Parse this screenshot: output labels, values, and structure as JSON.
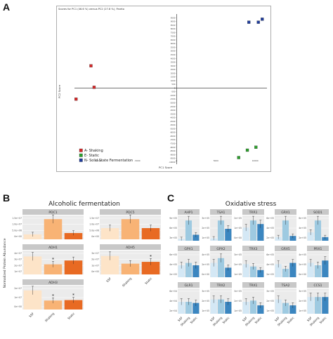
{
  "panels": {
    "a": "A",
    "b": "B",
    "c": "C"
  },
  "pca": {
    "header": "Scores for PC1 (46.6 %) versus PC2 (27.8 %), Pareto",
    "xlabel": "PC1 Score",
    "ylabel": "PC2 Score",
    "y_ticks": [
      "9500",
      "9000",
      "8500",
      "8000",
      "7500",
      "7000",
      "6500",
      "6000",
      "5500",
      "5000",
      "4500",
      "4000",
      "3500",
      "3000",
      "2500",
      "2000",
      "1500",
      "1000",
      "500",
      "0",
      "-500",
      "-1000",
      "-1500",
      "-2000",
      "-2500",
      "-3000",
      "-3500",
      "-4000",
      "-4500",
      "-5000",
      "-5500",
      "-6000",
      "-6500",
      "-7000",
      "-7500",
      "-8000",
      "-8500",
      "-9000",
      "-9500",
      "-10000"
    ],
    "x_ticks": [
      "-10000",
      "-5000",
      "0",
      "5000",
      "10000"
    ],
    "legend": [
      {
        "label": "A- Shaking",
        "color": "#d62728"
      },
      {
        "label": "E- Static",
        "color": "#2ca02c"
      },
      {
        "label": "N- Solid State Fermentation",
        "color": "#1f3c9c"
      }
    ]
  },
  "chart_data": {
    "type": "scatter",
    "title": "Scores for PC1 (46.6 %) versus PC2 (27.8 %), Pareto",
    "xlabel": "PC1 Score",
    "ylabel": "PC2 Score",
    "xlim": [
      -13000,
      11500
    ],
    "ylim": [
      -10300,
      10000
    ],
    "series": [
      {
        "name": "A- Shaking",
        "color": "#d62728",
        "points": [
          [
            -10900,
            3000
          ],
          [
            -10500,
            100
          ],
          [
            -12800,
            -1500
          ]
        ]
      },
      {
        "name": "E- Static",
        "color": "#2ca02c",
        "points": [
          [
            9000,
            -8400
          ],
          [
            10100,
            -8000
          ],
          [
            7900,
            -9400
          ]
        ]
      },
      {
        "name": "N- Solid State Fermentation",
        "color": "#1f3c9c",
        "points": [
          [
            9200,
            8900
          ],
          [
            10400,
            8900
          ],
          [
            10900,
            9300
          ]
        ]
      }
    ]
  },
  "alcoholic": {
    "title": "Alcoholic fermentation",
    "ylabel": "Normalized Protein Abundance",
    "x_labels": [
      "SSF",
      "Shaking",
      "Static"
    ],
    "colors": [
      "#fde4c8",
      "#f8b375",
      "#e86a23"
    ],
    "facets": [
      {
        "name": "PDC1",
        "ticks": [
          "1.5e+07",
          "1.0e+07",
          "5.0e+06",
          "0e+00"
        ],
        "values": [
          0.22,
          0.9,
          0.28
        ],
        "stars": [
          "",
          "",
          ""
        ]
      },
      {
        "name": "PDC5",
        "ticks": [
          "1.5e+07",
          "1.0e+07",
          "5.0e+06",
          "0e+00"
        ],
        "values": [
          0.5,
          0.9,
          0.5
        ],
        "stars": [
          "",
          "",
          ""
        ]
      },
      {
        "name": "ADH1",
        "ticks": [
          "4e+07",
          "3e+07",
          "2e+07",
          "1e+07"
        ],
        "values": [
          0.8,
          0.45,
          0.62
        ],
        "stars": [
          "",
          "*",
          ""
        ]
      },
      {
        "name": "ADH5",
        "ticks": [
          "3e+07",
          "2e+07",
          "1e+07",
          "0e+00"
        ],
        "values": [
          0.82,
          0.48,
          0.56
        ],
        "stars": [
          "",
          "",
          "*"
        ]
      },
      {
        "name": "ADH3",
        "ticks": [
          "2e+07",
          "1e+07",
          "0e+00"
        ],
        "values": [
          0.85,
          0.4,
          0.42
        ],
        "stars": [
          "",
          "*",
          "*"
        ]
      }
    ]
  },
  "oxidative": {
    "title": "Oxidative stress",
    "x_labels": [
      "SSF",
      "Shaking",
      "Static"
    ],
    "colors": [
      "#d4e8f5",
      "#9ecae1",
      "#3b86c0"
    ],
    "facets": [
      {
        "name": "AHP1",
        "ticks": [
          "9e+05",
          "6e+05",
          "3e+05"
        ],
        "values": [
          0.08,
          0.85,
          0.25
        ],
        "stars": [
          "",
          "",
          ""
        ]
      },
      {
        "name": "TSA1",
        "ticks": [
          "3e+05",
          "2e+05",
          "1e+05"
        ],
        "values": [
          0.1,
          0.85,
          0.5
        ],
        "stars": [
          "",
          "",
          ""
        ]
      },
      {
        "name": "TRR1",
        "ticks": [
          "2e+05",
          "1e+05",
          "0e+00"
        ],
        "values": [
          0.55,
          0.85,
          0.7
        ],
        "stars": [
          "",
          "",
          ""
        ]
      },
      {
        "name": "GRX1",
        "ticks": [
          "6e+05",
          "4e+05",
          "2e+05"
        ],
        "values": [
          0.15,
          0.85,
          0.2
        ],
        "stars": [
          "",
          "",
          ""
        ]
      },
      {
        "name": "SOD1",
        "ticks": [
          "6e+05",
          "4e+05",
          "2e+05"
        ],
        "values": [
          0.35,
          0.85,
          0.15
        ],
        "stars": [
          "",
          "",
          ""
        ]
      },
      {
        "name": "GPX1",
        "ticks": [
          "6e+05",
          "4e+05",
          "2e+05"
        ],
        "values": [
          0.5,
          0.6,
          0.5
        ],
        "stars": [
          "",
          "",
          ""
        ]
      },
      {
        "name": "GPX2",
        "ticks": [
          "4e+05",
          "2e+05",
          "0e+00"
        ],
        "values": [
          0.6,
          0.8,
          0.4
        ],
        "stars": [
          "",
          "",
          ""
        ]
      },
      {
        "name": "TRX3",
        "ticks": [
          "3e+05",
          "2e+05",
          "1e+05"
        ],
        "values": [
          0.55,
          0.45,
          0.3
        ],
        "stars": [
          "",
          "",
          ""
        ]
      },
      {
        "name": "GRX5",
        "ticks": [
          "6e+05",
          "4e+05",
          "2e+05"
        ],
        "values": [
          0.55,
          0.35,
          0.6
        ],
        "stars": [
          "",
          "",
          ""
        ]
      },
      {
        "name": "PRX1",
        "ticks": [
          "4e+05",
          "2e+05",
          "0e+00"
        ],
        "values": [
          0.6,
          0.5,
          0.7
        ],
        "stars": [
          "",
          "",
          ""
        ]
      },
      {
        "name": "GLR1",
        "ticks": [
          "6e+04",
          "4e+04",
          "2e+04"
        ],
        "values": [
          0.5,
          0.5,
          0.45
        ],
        "stars": [
          "",
          "",
          ""
        ]
      },
      {
        "name": "TRX2",
        "ticks": [
          "3e+05",
          "2e+05",
          "1e+05"
        ],
        "values": [
          0.6,
          0.6,
          0.5
        ],
        "stars": [
          "",
          "",
          ""
        ]
      },
      {
        "name": "TRX1",
        "ticks": [
          "3e+05",
          "2e+05",
          "1e+05"
        ],
        "values": [
          0.5,
          0.55,
          0.35
        ],
        "stars": [
          "",
          "",
          ""
        ]
      },
      {
        "name": "TSA2",
        "ticks": [
          "3e+05",
          "2e+05",
          "1e+05"
        ],
        "values": [
          0.6,
          0.45,
          0.35
        ],
        "stars": [
          "",
          "",
          ""
        ]
      },
      {
        "name": "CCS1",
        "ticks": [
          "3e+05",
          "2e+05",
          "1e+05"
        ],
        "values": [
          0.7,
          0.7,
          0.7
        ],
        "stars": [
          "",
          "",
          ""
        ]
      }
    ]
  }
}
